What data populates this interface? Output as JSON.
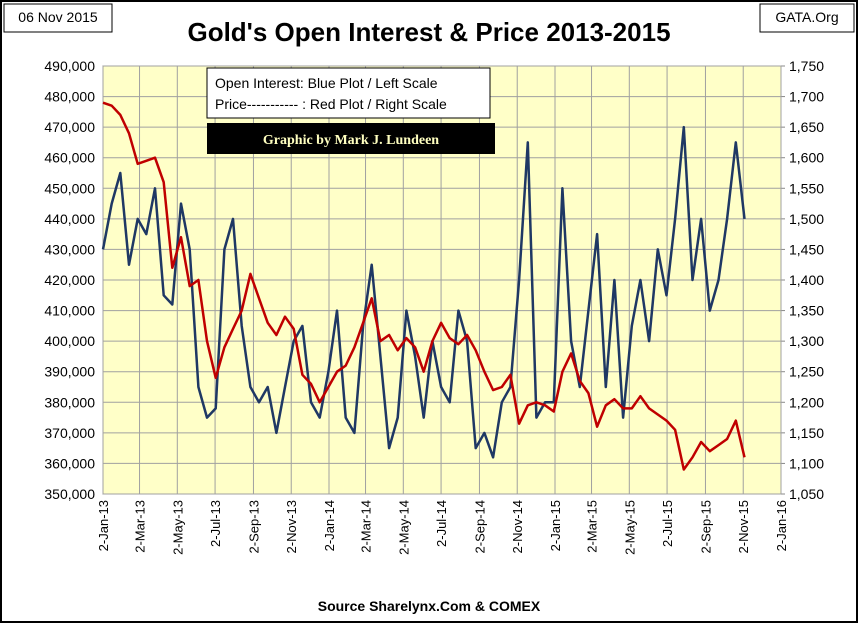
{
  "chart_data": {
    "type": "line",
    "title": "Gold's Open Interest & Price 2013-2015",
    "date_label": "06 Nov 2015",
    "site": "GATA.Org",
    "legend_text": [
      "Open Interest:  Blue Plot / Left Scale",
      "Price----------- : Red Plot / Right Scale"
    ],
    "credit": "Graphic by Mark J. Lundeen",
    "source": "Source Sharelynx.Com & COMEX",
    "background": "#ffffc8",
    "grid": true,
    "x": [
      "2013-01-02",
      "2013-01-16",
      "2013-01-30",
      "2013-02-13",
      "2013-02-27",
      "2013-03-13",
      "2013-03-27",
      "2013-04-10",
      "2013-04-24",
      "2013-05-08",
      "2013-05-22",
      "2013-06-05",
      "2013-06-19",
      "2013-07-03",
      "2013-07-17",
      "2013-07-31",
      "2013-08-14",
      "2013-08-28",
      "2013-09-11",
      "2013-09-25",
      "2013-10-09",
      "2013-10-23",
      "2013-11-06",
      "2013-11-20",
      "2013-12-04",
      "2013-12-18",
      "2014-01-01",
      "2014-01-15",
      "2014-01-29",
      "2014-02-12",
      "2014-02-26",
      "2014-03-12",
      "2014-03-26",
      "2014-04-09",
      "2014-04-23",
      "2014-05-07",
      "2014-05-21",
      "2014-06-04",
      "2014-06-18",
      "2014-07-02",
      "2014-07-16",
      "2014-07-30",
      "2014-08-13",
      "2014-08-27",
      "2014-09-10",
      "2014-09-24",
      "2014-10-08",
      "2014-10-22",
      "2014-11-05",
      "2014-11-19",
      "2014-12-03",
      "2014-12-17",
      "2014-12-31",
      "2015-01-14",
      "2015-01-28",
      "2015-02-11",
      "2015-02-25",
      "2015-03-11",
      "2015-03-25",
      "2015-04-08",
      "2015-04-22",
      "2015-05-06",
      "2015-05-20",
      "2015-06-03",
      "2015-06-17",
      "2015-07-01",
      "2015-07-15",
      "2015-07-29",
      "2015-08-12",
      "2015-08-26",
      "2015-09-09",
      "2015-09-23",
      "2015-10-07",
      "2015-10-21",
      "2015-11-04"
    ],
    "series": [
      {
        "color": "#1f3864",
        "axis": "y",
        "values": [
          430000,
          445000,
          455000,
          425000,
          440000,
          435000,
          450000,
          415000,
          412000,
          445000,
          430000,
          385000,
          375000,
          378000,
          430000,
          440000,
          405000,
          385000,
          380000,
          385000,
          370000,
          385000,
          400000,
          405000,
          380000,
          375000,
          390000,
          410000,
          375000,
          370000,
          405000,
          425000,
          395000,
          365000,
          375000,
          410000,
          395000,
          375000,
          400000,
          385000,
          380000,
          410000,
          400000,
          365000,
          370000,
          362000,
          380000,
          385000,
          420000,
          465000,
          375000,
          380000,
          380000,
          450000,
          400000,
          385000,
          410000,
          435000,
          385000,
          420000,
          375000,
          405000,
          420000,
          400000,
          430000,
          415000,
          440000,
          470000,
          420000,
          440000,
          410000,
          420000,
          440000,
          465000,
          440000
        ]
      },
      {
        "color": "#c00000",
        "axis": "y2",
        "values": [
          1690,
          1685,
          1670,
          1640,
          1590,
          1595,
          1600,
          1560,
          1420,
          1470,
          1390,
          1400,
          1300,
          1240,
          1290,
          1320,
          1350,
          1410,
          1370,
          1330,
          1310,
          1340,
          1320,
          1245,
          1230,
          1200,
          1225,
          1250,
          1260,
          1290,
          1330,
          1370,
          1300,
          1310,
          1285,
          1305,
          1290,
          1250,
          1300,
          1330,
          1305,
          1295,
          1310,
          1285,
          1250,
          1220,
          1225,
          1245,
          1165,
          1195,
          1200,
          1195,
          1185,
          1250,
          1280,
          1235,
          1215,
          1160,
          1195,
          1205,
          1190,
          1190,
          1210,
          1190,
          1180,
          1170,
          1155,
          1090,
          1110,
          1135,
          1120,
          1130,
          1140,
          1170,
          1110
        ]
      }
    ],
    "xlim": [
      "2013-01-02",
      "2016-01-02"
    ],
    "xticks": [
      {
        "value": "2013-01-02",
        "label": "2-Jan-13"
      },
      {
        "value": "2013-03-02",
        "label": "2-Mar-13"
      },
      {
        "value": "2013-05-02",
        "label": "2-May-13"
      },
      {
        "value": "2013-07-02",
        "label": "2-Jul-13"
      },
      {
        "value": "2013-09-02",
        "label": "2-Sep-13"
      },
      {
        "value": "2013-11-02",
        "label": "2-Nov-13"
      },
      {
        "value": "2014-01-02",
        "label": "2-Jan-14"
      },
      {
        "value": "2014-03-02",
        "label": "2-Mar-14"
      },
      {
        "value": "2014-05-02",
        "label": "2-May-14"
      },
      {
        "value": "2014-07-02",
        "label": "2-Jul-14"
      },
      {
        "value": "2014-09-02",
        "label": "2-Sep-14"
      },
      {
        "value": "2014-11-02",
        "label": "2-Nov-14"
      },
      {
        "value": "2015-01-02",
        "label": "2-Jan-15"
      },
      {
        "value": "2015-03-02",
        "label": "2-Mar-15"
      },
      {
        "value": "2015-05-02",
        "label": "2-May-15"
      },
      {
        "value": "2015-07-02",
        "label": "2-Jul-15"
      },
      {
        "value": "2015-09-02",
        "label": "2-Sep-15"
      },
      {
        "value": "2015-11-02",
        "label": "2-Nov-15"
      },
      {
        "value": "2016-01-02",
        "label": "2-Jan-16"
      }
    ],
    "ylim": [
      350000,
      490000
    ],
    "yticks": [
      {
        "value": 350000,
        "label": "350,000"
      },
      {
        "value": 360000,
        "label": "360,000"
      },
      {
        "value": 370000,
        "label": "370,000"
      },
      {
        "value": 380000,
        "label": "380,000"
      },
      {
        "value": 390000,
        "label": "390,000"
      },
      {
        "value": 400000,
        "label": "400,000"
      },
      {
        "value": 410000,
        "label": "410,000"
      },
      {
        "value": 420000,
        "label": "420,000"
      },
      {
        "value": 430000,
        "label": "430,000"
      },
      {
        "value": 440000,
        "label": "440,000"
      },
      {
        "value": 450000,
        "label": "450,000"
      },
      {
        "value": 460000,
        "label": "460,000"
      },
      {
        "value": 470000,
        "label": "470,000"
      },
      {
        "value": 480000,
        "label": "480,000"
      },
      {
        "value": 490000,
        "label": "490,000"
      }
    ],
    "y2lim": [
      1050,
      1750
    ],
    "y2ticks": [
      {
        "value": 1050,
        "label": "1,050"
      },
      {
        "value": 1100,
        "label": "1,100"
      },
      {
        "value": 1150,
        "label": "1,150"
      },
      {
        "value": 1200,
        "label": "1,200"
      },
      {
        "value": 1250,
        "label": "1,250"
      },
      {
        "value": 1300,
        "label": "1,300"
      },
      {
        "value": 1350,
        "label": "1,350"
      },
      {
        "value": 1400,
        "label": "1,400"
      },
      {
        "value": 1450,
        "label": "1,450"
      },
      {
        "value": 1500,
        "label": "1,500"
      },
      {
        "value": 1550,
        "label": "1,550"
      },
      {
        "value": 1600,
        "label": "1,600"
      },
      {
        "value": 1650,
        "label": "1,650"
      },
      {
        "value": 1700,
        "label": "1,700"
      },
      {
        "value": 1750,
        "label": "1,750"
      }
    ]
  }
}
